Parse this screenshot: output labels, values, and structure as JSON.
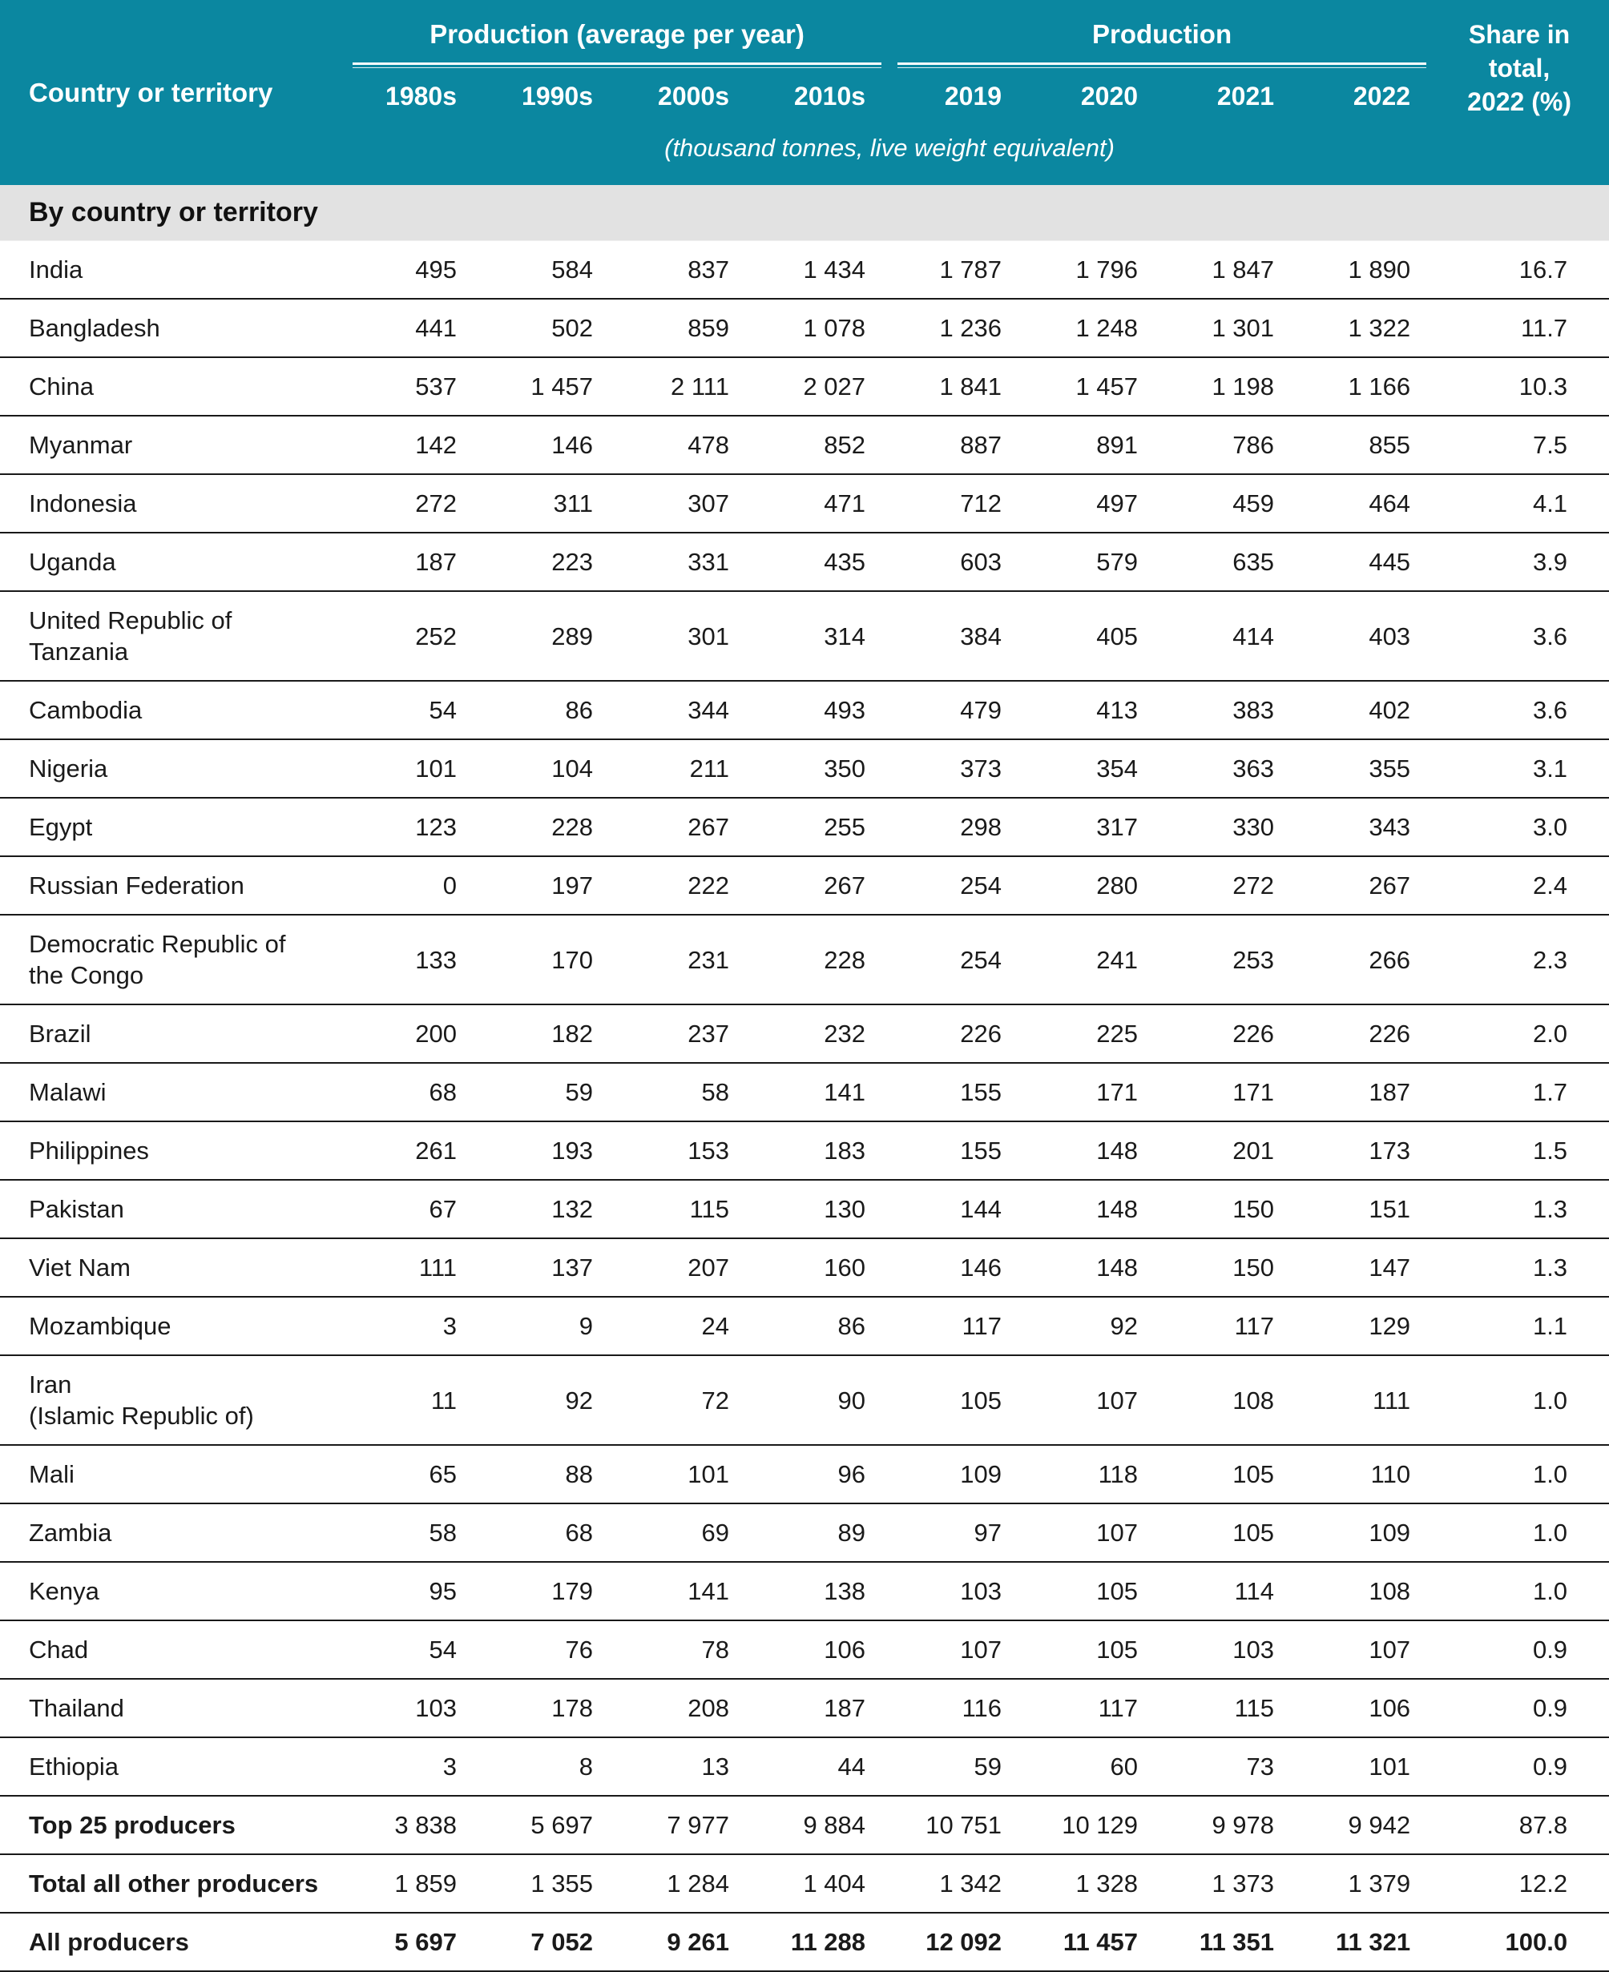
{
  "colors": {
    "header_teal": "#0b87a0",
    "section_gray": "#e2e2e2",
    "rule_dark": "#191919"
  },
  "table": {
    "col1_header": "Country or territory",
    "group1": "Production (average per year)",
    "group2": "Production",
    "share_header": "Share in\ntotal,\n2022 (%)",
    "year_headers": [
      "1980s",
      "1990s",
      "2000s",
      "2010s",
      "2019",
      "2020",
      "2021",
      "2022"
    ],
    "subtitle": "(thousand tonnes, live weight equivalent)",
    "section_label": "By country or territory",
    "rows": [
      {
        "name": "India",
        "values": [
          "495",
          "584",
          "837",
          "1 434",
          "1 787",
          "1 796",
          "1 847",
          "1 890",
          "16.7"
        ]
      },
      {
        "name": "Bangladesh",
        "values": [
          "441",
          "502",
          "859",
          "1 078",
          "1 236",
          "1 248",
          "1 301",
          "1 322",
          "11.7"
        ]
      },
      {
        "name": "China",
        "values": [
          "537",
          "1 457",
          "2 111",
          "2 027",
          "1 841",
          "1 457",
          "1 198",
          "1 166",
          "10.3"
        ]
      },
      {
        "name": "Myanmar",
        "values": [
          "142",
          "146",
          "478",
          "852",
          "887",
          "891",
          "786",
          "855",
          "7.5"
        ]
      },
      {
        "name": "Indonesia",
        "values": [
          "272",
          "311",
          "307",
          "471",
          "712",
          "497",
          "459",
          "464",
          "4.1"
        ]
      },
      {
        "name": "Uganda",
        "values": [
          "187",
          "223",
          "331",
          "435",
          "603",
          "579",
          "635",
          "445",
          "3.9"
        ]
      },
      {
        "name": "United Republic of\nTanzania",
        "values": [
          "252",
          "289",
          "301",
          "314",
          "384",
          "405",
          "414",
          "403",
          "3.6"
        ]
      },
      {
        "name": "Cambodia",
        "values": [
          "54",
          "86",
          "344",
          "493",
          "479",
          "413",
          "383",
          "402",
          "3.6"
        ]
      },
      {
        "name": "Nigeria",
        "values": [
          "101",
          "104",
          "211",
          "350",
          "373",
          "354",
          "363",
          "355",
          "3.1"
        ]
      },
      {
        "name": "Egypt",
        "values": [
          "123",
          "228",
          "267",
          "255",
          "298",
          "317",
          "330",
          "343",
          "3.0"
        ]
      },
      {
        "name": "Russian Federation",
        "values": [
          "0",
          "197",
          "222",
          "267",
          "254",
          "280",
          "272",
          "267",
          "2.4"
        ]
      },
      {
        "name": "Democratic Republic of\nthe Congo",
        "values": [
          "133",
          "170",
          "231",
          "228",
          "254",
          "241",
          "253",
          "266",
          "2.3"
        ]
      },
      {
        "name": "Brazil",
        "values": [
          "200",
          "182",
          "237",
          "232",
          "226",
          "225",
          "226",
          "226",
          "2.0"
        ]
      },
      {
        "name": "Malawi",
        "values": [
          "68",
          "59",
          "58",
          "141",
          "155",
          "171",
          "171",
          "187",
          "1.7"
        ]
      },
      {
        "name": "Philippines",
        "values": [
          "261",
          "193",
          "153",
          "183",
          "155",
          "148",
          "201",
          "173",
          "1.5"
        ]
      },
      {
        "name": "Pakistan",
        "values": [
          "67",
          "132",
          "115",
          "130",
          "144",
          "148",
          "150",
          "151",
          "1.3"
        ]
      },
      {
        "name": "Viet Nam",
        "values": [
          "111",
          "137",
          "207",
          "160",
          "146",
          "148",
          "150",
          "147",
          "1.3"
        ]
      },
      {
        "name": "Mozambique",
        "values": [
          "3",
          "9",
          "24",
          "86",
          "117",
          "92",
          "117",
          "129",
          "1.1"
        ]
      },
      {
        "name": "Iran\n(Islamic Republic of)",
        "values": [
          "11",
          "92",
          "72",
          "90",
          "105",
          "107",
          "108",
          "111",
          "1.0"
        ]
      },
      {
        "name": "Mali",
        "values": [
          "65",
          "88",
          "101",
          "96",
          "109",
          "118",
          "105",
          "110",
          "1.0"
        ]
      },
      {
        "name": "Zambia",
        "values": [
          "58",
          "68",
          "69",
          "89",
          "97",
          "107",
          "105",
          "109",
          "1.0"
        ]
      },
      {
        "name": "Kenya",
        "values": [
          "95",
          "179",
          "141",
          "138",
          "103",
          "105",
          "114",
          "108",
          "1.0"
        ]
      },
      {
        "name": "Chad",
        "values": [
          "54",
          "76",
          "78",
          "106",
          "107",
          "105",
          "103",
          "107",
          "0.9"
        ]
      },
      {
        "name": "Thailand",
        "values": [
          "103",
          "178",
          "208",
          "187",
          "116",
          "117",
          "115",
          "106",
          "0.9"
        ]
      },
      {
        "name": "Ethiopia",
        "values": [
          "3",
          "8",
          "13",
          "44",
          "59",
          "60",
          "73",
          "101",
          "0.9"
        ]
      }
    ],
    "totals": [
      {
        "name": "Top 25 producers",
        "bold_label": true,
        "bold_values": false,
        "values": [
          "3 838",
          "5 697",
          "7 977",
          "9 884",
          "10 751",
          "10 129",
          "9 978",
          "9 942",
          "87.8"
        ]
      },
      {
        "name": "Total all other producers",
        "bold_label": true,
        "bold_values": false,
        "values": [
          "1 859",
          "1 355",
          "1 284",
          "1 404",
          "1 342",
          "1 328",
          "1 373",
          "1 379",
          "12.2"
        ]
      },
      {
        "name": "All producers",
        "bold_label": true,
        "bold_values": true,
        "values": [
          "5 697",
          "7 052",
          "9 261",
          "11 288",
          "12 092",
          "11 457",
          "11 351",
          "11 321",
          "100.0"
        ]
      }
    ]
  }
}
